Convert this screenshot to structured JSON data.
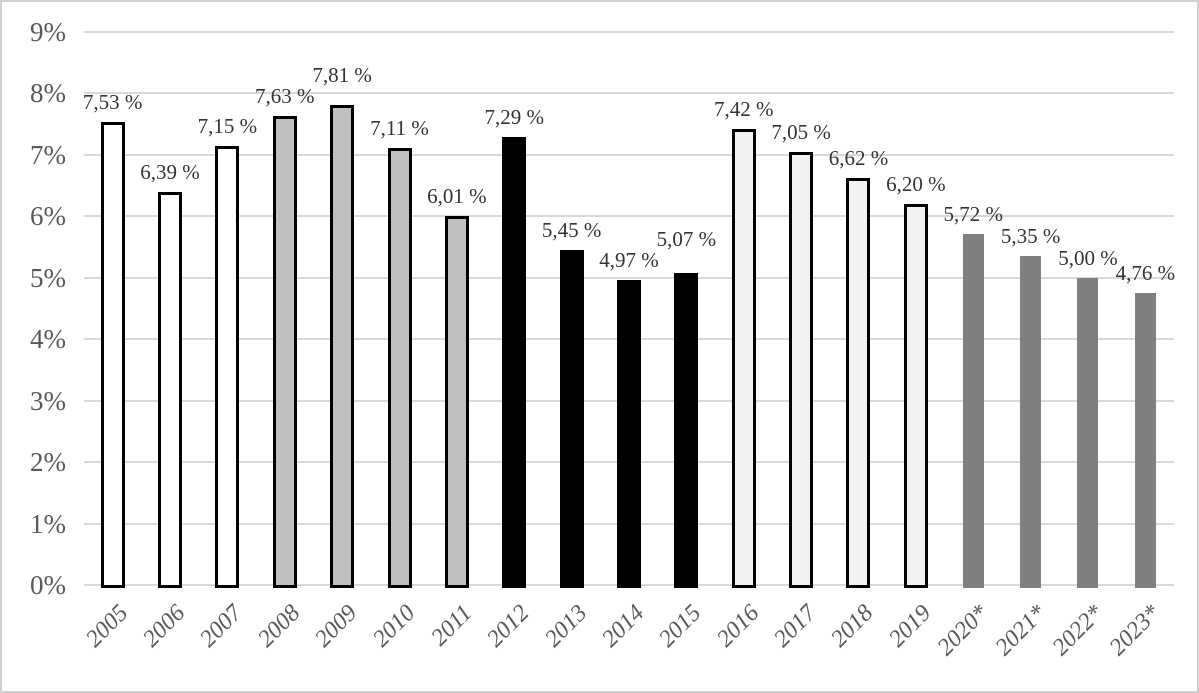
{
  "chart_data": {
    "type": "bar",
    "title": "",
    "xlabel": "",
    "ylabel": "",
    "legend": "none",
    "grid": true,
    "ylim": [
      0,
      9
    ],
    "categories": [
      "2005",
      "2006",
      "2007",
      "2008",
      "2009",
      "2010",
      "2011",
      "2012",
      "2013",
      "2014",
      "2015",
      "2016",
      "2017",
      "2018",
      "2019",
      "2020*",
      "2021*",
      "2022*",
      "2023*"
    ],
    "values": [
      7.53,
      6.39,
      7.15,
      7.63,
      7.81,
      7.11,
      6.01,
      7.29,
      5.45,
      4.97,
      5.07,
      7.42,
      7.05,
      6.62,
      6.2,
      5.72,
      5.35,
      5.0,
      4.76
    ],
    "data_labels": [
      "7,53 %",
      "6,39 %",
      "7,15 %",
      "7,63 %",
      "7,81 %",
      "7,11 %",
      "6,01 %",
      "7,29 %",
      "5,45 %",
      "4,97 %",
      "5,07 %",
      "7,42 %",
      "7,05 %",
      "6,62 %",
      "6,20 %",
      "5,72 %",
      "5,35 %",
      "5,00 %",
      "4,76 %"
    ],
    "y_tick_labels": [
      "0%",
      "1%",
      "2%",
      "3%",
      "4%",
      "5%",
      "6%",
      "7%",
      "8%",
      "9%"
    ],
    "bar_groups": [
      {
        "name": "white-bars",
        "from": 0,
        "to": 2,
        "fill": "#ffffff",
        "stroke": "#000000"
      },
      {
        "name": "gray-bars",
        "from": 3,
        "to": 6,
        "fill": "#bfbfbf",
        "stroke": "#000000"
      },
      {
        "name": "black-bars",
        "from": 7,
        "to": 10,
        "fill": "#000000",
        "stroke": "#000000"
      },
      {
        "name": "lightgray-bars",
        "from": 11,
        "to": 14,
        "fill": "#f2f2f2",
        "stroke": "#000000"
      },
      {
        "name": "darkgray-forecast-bars",
        "from": 15,
        "to": 18,
        "fill": "#7f7f7f",
        "stroke": "none"
      }
    ],
    "label_extra_raise": {
      "4": 10,
      "10": 14
    },
    "colors": {
      "gridline": "#d9d9d9",
      "axis_text": "#595959",
      "data_label_text": "#333333",
      "frame_border": "#cfcfcf",
      "background": "#ffffff"
    }
  }
}
